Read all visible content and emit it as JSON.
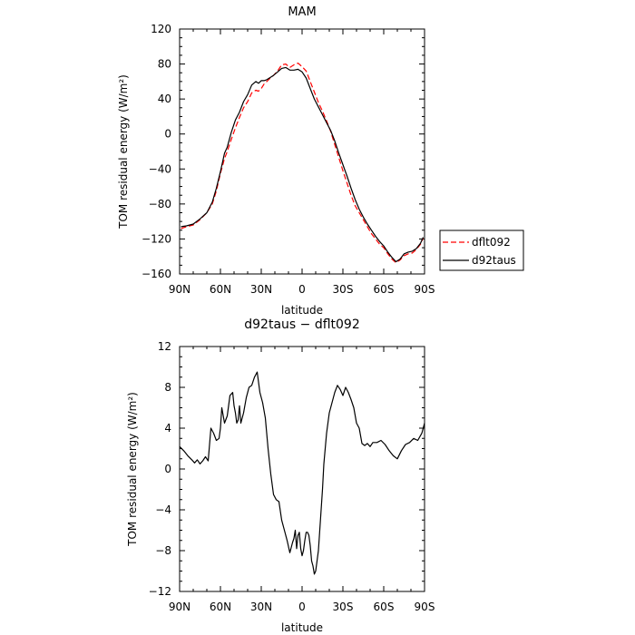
{
  "chart_data": [
    {
      "type": "line",
      "title": "MAM",
      "xlabel": "latitude",
      "ylabel": "TOM residual energy (W/m²)",
      "xlim": [
        90,
        -90
      ],
      "ylim": [
        -160,
        120
      ],
      "xticks": [
        "90N",
        "60N",
        "30N",
        "0",
        "30S",
        "60S",
        "90S"
      ],
      "yticks": [
        "120",
        "80",
        "40",
        "0",
        "−40",
        "−80",
        "−120",
        "−160"
      ],
      "legend": {
        "placement": "right"
      },
      "series": [
        {
          "name": "dflt092",
          "color": "#ff0000",
          "dash": "dashed",
          "x": [
            89,
            85,
            80,
            75,
            70,
            66,
            63,
            60,
            57,
            55,
            52,
            49,
            46,
            43,
            40,
            37,
            34,
            32,
            30,
            28,
            26,
            24,
            21,
            18,
            15,
            12,
            9,
            6,
            3,
            0,
            -3,
            -6,
            -9,
            -12,
            -15,
            -18,
            -21,
            -24,
            -27,
            -30,
            -33,
            -36,
            -39,
            -42,
            -45,
            -48,
            -51,
            -54,
            -57,
            -60,
            -63,
            -66,
            -69,
            -72,
            -75,
            -78,
            -81,
            -84,
            -87,
            -89
          ],
          "values": [
            -108,
            -106,
            -104,
            -98,
            -90,
            -80,
            -65,
            -45,
            -28,
            -20,
            -6,
            7,
            19,
            30,
            37,
            47,
            50,
            49,
            52,
            57,
            60,
            63,
            67,
            72,
            79,
            80,
            76,
            79,
            81,
            77,
            72,
            60,
            48,
            36,
            26,
            15,
            3,
            -12,
            -27,
            -42,
            -56,
            -70,
            -82,
            -90,
            -98,
            -106,
            -114,
            -120,
            -126,
            -130,
            -137,
            -143,
            -147,
            -144,
            -139,
            -137,
            -136,
            -132,
            -126,
            -119
          ]
        },
        {
          "name": "d92taus",
          "color": "#000000",
          "dash": "solid",
          "x": [
            89,
            85,
            80,
            75,
            70,
            66,
            63,
            60,
            57,
            55,
            52,
            49,
            46,
            43,
            40,
            37,
            34,
            32,
            30,
            28,
            26,
            24,
            21,
            18,
            15,
            12,
            9,
            6,
            3,
            0,
            -3,
            -6,
            -9,
            -12,
            -15,
            -18,
            -21,
            -24,
            -27,
            -30,
            -33,
            -36,
            -39,
            -42,
            -45,
            -48,
            -51,
            -54,
            -57,
            -60,
            -63,
            -66,
            -69,
            -72,
            -75,
            -78,
            -81,
            -84,
            -87,
            -89
          ],
          "values": [
            -106,
            -105,
            -103,
            -97,
            -90,
            -78,
            -62,
            -43,
            -22,
            -15,
            2,
            16,
            25,
            37,
            45,
            56,
            60,
            58,
            61,
            61,
            62,
            64,
            67,
            71,
            75,
            76,
            73,
            73,
            74,
            71,
            64,
            52,
            40,
            31,
            22,
            13,
            4,
            -8,
            -22,
            -35,
            -48,
            -62,
            -75,
            -86,
            -95,
            -103,
            -110,
            -117,
            -123,
            -128,
            -135,
            -141,
            -146,
            -143,
            -137,
            -135,
            -134,
            -131,
            -125,
            -118
          ]
        }
      ]
    },
    {
      "type": "line",
      "title": "d92taus − dflt092",
      "xlabel": "latitude",
      "ylabel": "TOM residual energy (W/m²)",
      "xlim": [
        90,
        -90
      ],
      "ylim": [
        -12,
        12
      ],
      "xticks": [
        "90N",
        "60N",
        "30N",
        "0",
        "30S",
        "60S",
        "90S"
      ],
      "yticks": [
        "12",
        "8",
        "4",
        "0",
        "−4",
        "−8",
        "−12"
      ],
      "series": [
        {
          "color": "#000000",
          "dash": "solid",
          "x": [
            90,
            87,
            84,
            81,
            79,
            77,
            75,
            73,
            71,
            69,
            67,
            65,
            63,
            61,
            60,
            59,
            57,
            55,
            53,
            51,
            50,
            49,
            48,
            47,
            46,
            45,
            43,
            41,
            39,
            37,
            35,
            33,
            31,
            29,
            27,
            25,
            23,
            21,
            19,
            17,
            15,
            13,
            11,
            9,
            7,
            6,
            5,
            4,
            3,
            2,
            1,
            0,
            -1,
            -2,
            -3,
            -4,
            -5,
            -6,
            -7,
            -8,
            -9,
            -10,
            -11,
            -12,
            -13,
            -14,
            -15,
            -16,
            -17,
            -18,
            -20,
            -22,
            -24,
            -26,
            -28,
            -30,
            -32,
            -34,
            -36,
            -38,
            -40,
            -42,
            -44,
            -46,
            -48,
            -50,
            -52,
            -55,
            -58,
            -61,
            -64,
            -67,
            -70,
            -73,
            -76,
            -79,
            -82,
            -85,
            -88,
            -90
          ],
          "values": [
            2.2,
            1.8,
            1.3,
            0.9,
            0.6,
            0.9,
            0.5,
            0.8,
            1.2,
            0.8,
            4.0,
            3.5,
            2.8,
            3.0,
            4.0,
            6.0,
            4.5,
            5.2,
            7.2,
            7.5,
            6.2,
            5.5,
            4.5,
            4.8,
            6.2,
            4.5,
            5.5,
            7.0,
            8.0,
            8.2,
            9.0,
            9.5,
            7.5,
            6.5,
            5.0,
            2.0,
            -0.5,
            -2.5,
            -3.0,
            -3.2,
            -5.0,
            -6.0,
            -7.0,
            -8.2,
            -7.2,
            -6.8,
            -6.0,
            -7.8,
            -6.5,
            -6.2,
            -7.8,
            -8.5,
            -8.0,
            -7.0,
            -6.2,
            -6.2,
            -6.5,
            -7.5,
            -9.0,
            -9.5,
            -10.3,
            -10.0,
            -9.0,
            -8.0,
            -6.0,
            -4.0,
            -2.0,
            0.5,
            2.0,
            3.5,
            5.5,
            6.5,
            7.5,
            8.2,
            7.8,
            7.2,
            8.0,
            7.5,
            6.8,
            6.0,
            4.5,
            4.0,
            2.5,
            2.3,
            2.5,
            2.2,
            2.6,
            2.6,
            2.8,
            2.4,
            1.8,
            1.3,
            1.0,
            1.8,
            2.4,
            2.6,
            3.0,
            2.8,
            3.5,
            4.5
          ]
        }
      ]
    }
  ]
}
